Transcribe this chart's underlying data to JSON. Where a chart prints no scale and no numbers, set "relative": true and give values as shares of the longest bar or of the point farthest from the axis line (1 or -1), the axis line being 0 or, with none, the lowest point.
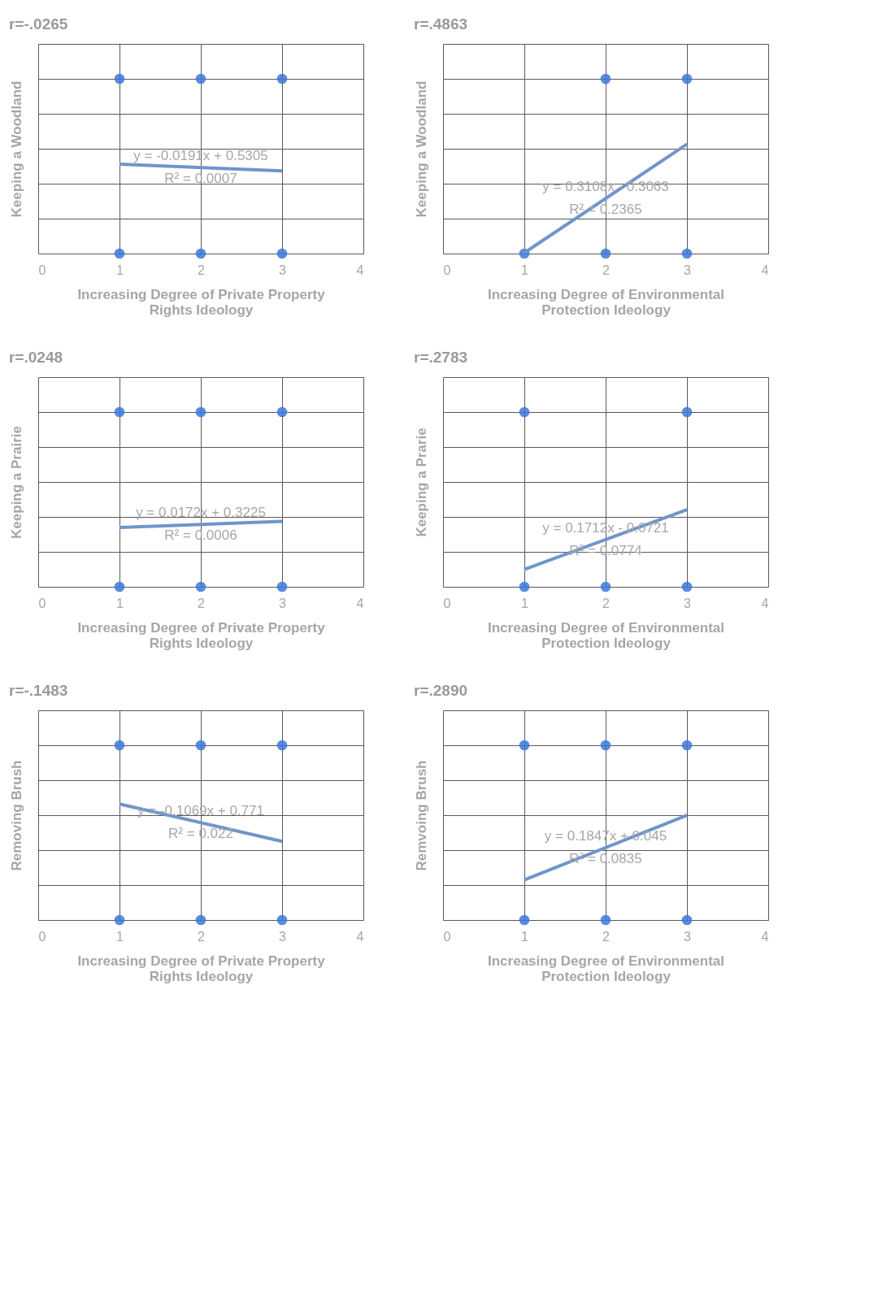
{
  "chart_data": [
    {
      "type": "scatter",
      "title": "r=-.0265",
      "xlabel": "Increasing Degree of Private Property Rights Ideology",
      "ylabel": "Keeping a Woodland",
      "xlim": [
        0,
        4
      ],
      "xticks": [
        0,
        1,
        2,
        3,
        4
      ],
      "relative": true,
      "tick_labels": "x",
      "grid": true,
      "annotations": [
        "y = -0.0191x + 0.5305",
        "R² = 0.0007"
      ],
      "series": [
        {
          "color": "#3c78d8",
          "marker": "circle",
          "x": [
            1,
            2,
            3,
            1,
            2,
            3
          ],
          "values": [
            1,
            1,
            1,
            0,
            0,
            0
          ]
        },
        {
          "type": "line",
          "color": "#6f95cb",
          "x": [
            1,
            3
          ],
          "values": [
            0.5114,
            0.4732
          ]
        }
      ]
    },
    {
      "type": "scatter",
      "title": "r=.4863",
      "xlabel": "Increasing Degree of Environmental Protection Ideology",
      "ylabel": "Keeping a Woodland",
      "xlim": [
        0,
        4
      ],
      "xticks": [
        0,
        1,
        2,
        3,
        4
      ],
      "relative": true,
      "tick_labels": "x",
      "grid": true,
      "annotations": [
        "y = 0.3108x - 0.3063",
        "R² = 0.2365"
      ],
      "series": [
        {
          "color": "#3c78d8",
          "marker": "circle",
          "x": [
            2,
            3,
            1,
            2,
            3
          ],
          "values": [
            1,
            1,
            0,
            0,
            0
          ]
        },
        {
          "type": "line",
          "color": "#6f95cb",
          "x": [
            1,
            3
          ],
          "values": [
            0.0045,
            0.6261
          ]
        }
      ]
    },
    {
      "type": "scatter",
      "title": "r=.0248",
      "xlabel": "Increasing Degree of Private Property Rights Ideology",
      "ylabel": "Keeping a Prairie",
      "xlim": [
        0,
        4
      ],
      "xticks": [
        0,
        1,
        2,
        3,
        4
      ],
      "relative": true,
      "tick_labels": "x",
      "grid": true,
      "annotations": [
        "y = 0.0172x + 0.3225",
        "R² = 0.0006"
      ],
      "series": [
        {
          "color": "#3c78d8",
          "marker": "circle",
          "x": [
            1,
            2,
            3,
            1,
            2,
            3
          ],
          "values": [
            1,
            1,
            1,
            0,
            0,
            0
          ]
        },
        {
          "type": "line",
          "color": "#6f95cb",
          "x": [
            1,
            3
          ],
          "values": [
            0.3397,
            0.3741
          ]
        }
      ]
    },
    {
      "type": "scatter",
      "title": "r=.2783",
      "xlabel": "Increasing Degree of Environmental Protection Ideology",
      "ylabel": "Keeping a Prarie",
      "xlim": [
        0,
        4
      ],
      "xticks": [
        0,
        1,
        2,
        3,
        4
      ],
      "relative": true,
      "tick_labels": "x",
      "grid": true,
      "annotations": [
        "y = 0.1712x - 0.0721",
        "R² = 0.0774"
      ],
      "series": [
        {
          "color": "#3c78d8",
          "marker": "circle",
          "x": [
            1,
            3,
            1,
            2,
            3
          ],
          "values": [
            1,
            1,
            0,
            0,
            0
          ]
        },
        {
          "type": "line",
          "color": "#6f95cb",
          "x": [
            1,
            3
          ],
          "values": [
            0.0991,
            0.4415
          ]
        }
      ]
    },
    {
      "type": "scatter",
      "title": "r=-.1483",
      "xlabel": "Increasing Degree of Private Property Rights Ideology",
      "ylabel": "Removing Brush",
      "xlim": [
        0,
        4
      ],
      "xticks": [
        0,
        1,
        2,
        3,
        4
      ],
      "relative": true,
      "tick_labels": "x",
      "grid": true,
      "annotations": [
        "y = -0.1069x + 0.771",
        "R² = 0.022"
      ],
      "series": [
        {
          "color": "#3c78d8",
          "marker": "circle",
          "x": [
            1,
            2,
            3,
            1,
            2,
            3
          ],
          "values": [
            1,
            1,
            1,
            0,
            0,
            0
          ]
        },
        {
          "type": "line",
          "color": "#6f95cb",
          "x": [
            1,
            3
          ],
          "values": [
            0.6641,
            0.4503
          ]
        }
      ]
    },
    {
      "type": "scatter",
      "title": "r=.2890",
      "xlabel": "Increasing Degree of Environmental Protection Ideology",
      "ylabel": "Remvoing Brush",
      "xlim": [
        0,
        4
      ],
      "xticks": [
        0,
        1,
        2,
        3,
        4
      ],
      "relative": true,
      "tick_labels": "x",
      "grid": true,
      "annotations": [
        "y = 0.1847x + 0.045",
        "R² = 0.0835"
      ],
      "series": [
        {
          "color": "#3c78d8",
          "marker": "circle",
          "x": [
            1,
            2,
            3,
            1,
            2,
            3
          ],
          "values": [
            1,
            1,
            1,
            0,
            0,
            0
          ]
        },
        {
          "type": "line",
          "color": "#6f95cb",
          "x": [
            1,
            3
          ],
          "values": [
            0.2292,
            0.5991
          ]
        }
      ]
    }
  ]
}
